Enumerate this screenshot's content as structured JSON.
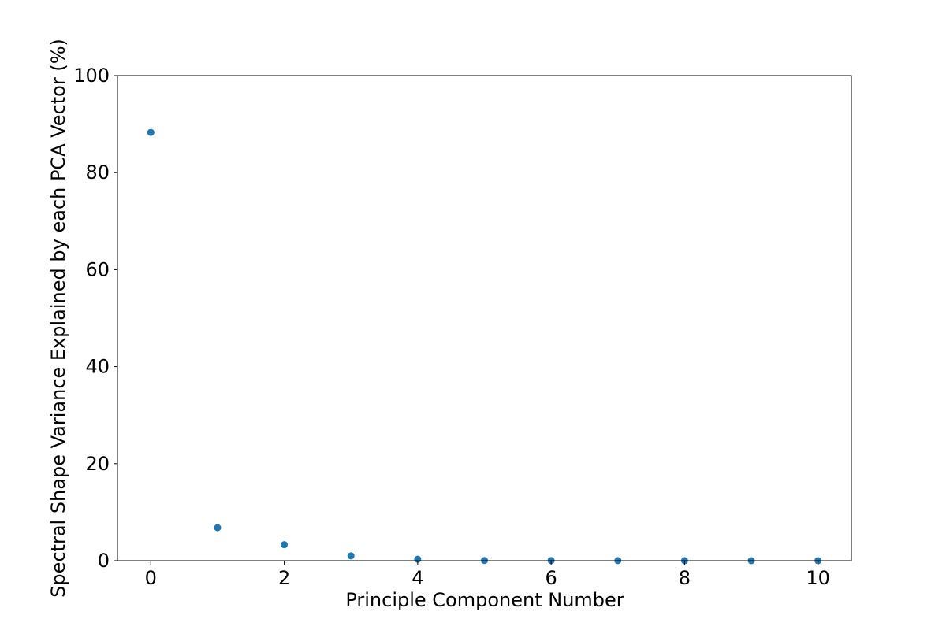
{
  "chart_data": {
    "type": "scatter",
    "xlabel": "Principle Component Number",
    "ylabel": "Spectral Shape Variance Explained by each PCA Vector (%)",
    "xlim": [
      -0.5,
      10.5
    ],
    "ylim": [
      0,
      100
    ],
    "x_ticks": [
      0,
      2,
      4,
      6,
      8,
      10
    ],
    "y_ticks": [
      0,
      20,
      40,
      60,
      80,
      100
    ],
    "grid": false,
    "series": [
      {
        "color": "#1f77b4",
        "x": [
          0,
          1,
          2,
          3,
          4,
          5,
          6,
          7,
          8,
          9,
          10
        ],
        "y": [
          88.3,
          6.8,
          3.3,
          1.0,
          0.3,
          0.05,
          0.03,
          0.02,
          0.01,
          0.01,
          0.01
        ]
      }
    ]
  }
}
